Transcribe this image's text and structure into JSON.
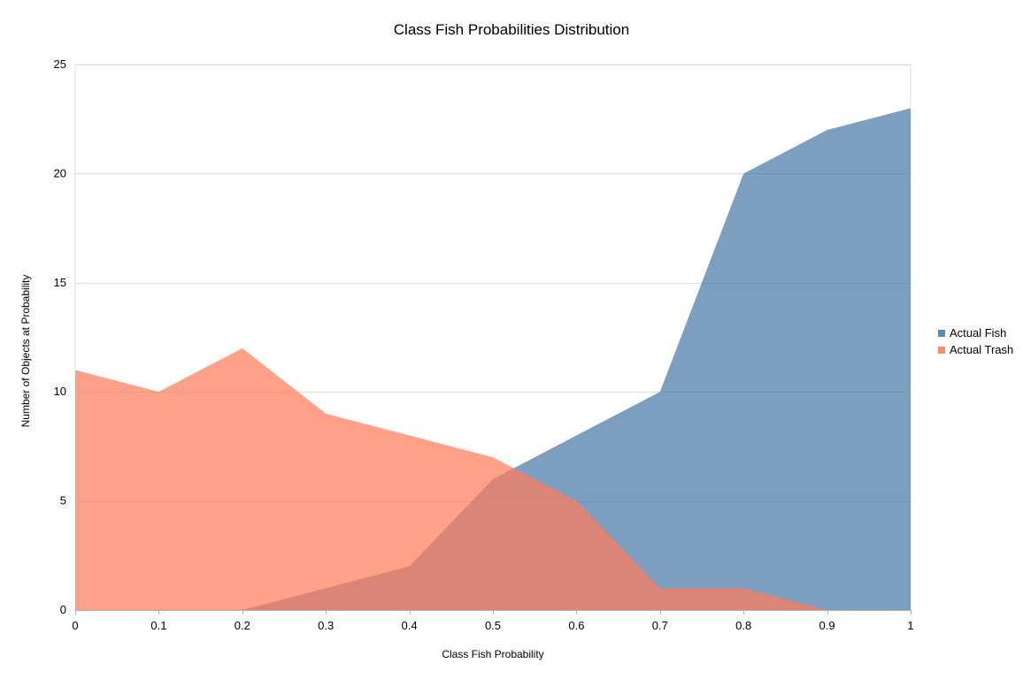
{
  "chart_data": {
    "type": "area",
    "title": "Class Fish Probabilities Distribution",
    "xlabel": "Class Fish Probability",
    "ylabel": "Number of Objects at Probability",
    "x": [
      0,
      0.1,
      0.2,
      0.3,
      0.4,
      0.5,
      0.6,
      0.7,
      0.8,
      0.9,
      1
    ],
    "x_tick_labels": [
      "0",
      "0.1",
      "0.2",
      "0.3",
      "0.4",
      "0.5",
      "0.6",
      "0.7",
      "0.8",
      "0.9",
      "1"
    ],
    "y_tick_labels": [
      "0",
      "5",
      "10",
      "15",
      "20",
      "25"
    ],
    "xlim": [
      0,
      1
    ],
    "ylim": [
      0,
      25
    ],
    "grid": true,
    "legend_position": "right",
    "series": [
      {
        "name": "Actual Fish",
        "color": "#4a7aa8",
        "opacity": 0.72,
        "values": [
          0,
          0,
          0,
          1,
          2,
          6,
          8,
          10,
          20,
          22,
          23
        ]
      },
      {
        "name": "Actual Trash",
        "color": "#ff7c5c",
        "opacity": 0.72,
        "values": [
          11,
          10,
          12,
          9,
          8,
          7,
          5,
          1,
          1,
          0,
          0
        ]
      }
    ]
  }
}
